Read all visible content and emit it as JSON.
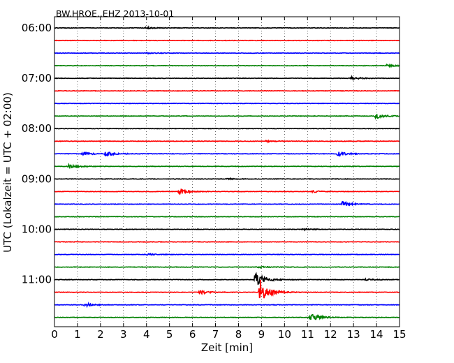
{
  "chart_data": {
    "type": "line",
    "title": "BW.HROE..EHZ 2013-10-01",
    "xlabel": "Zeit  [min]",
    "ylabel": "UTC (Lokalzeit = UTC + 02:00)",
    "xlim": [
      0,
      15
    ],
    "x_ticks": [
      "0",
      "1",
      "2",
      "3",
      "4",
      "5",
      "6",
      "7",
      "8",
      "9",
      "10",
      "11",
      "12",
      "13",
      "14",
      "15"
    ],
    "y_ticks": [
      "06:00",
      "07:00",
      "08:00",
      "09:00",
      "10:00",
      "11:00"
    ],
    "y_tick_trace_index": [
      0,
      4,
      8,
      12,
      16,
      20
    ],
    "grid": "vertical dotted",
    "trace_colors": [
      "#000000",
      "#ff0000",
      "#0000ff",
      "#008000"
    ],
    "traces": [
      {
        "start": "06:00",
        "events": [
          {
            "minute": 3.9,
            "amplitude": 0.25
          }
        ]
      },
      {
        "start": "06:15",
        "events": []
      },
      {
        "start": "06:30",
        "events": [
          {
            "minute": 4.0,
            "amplitude": 0.15
          }
        ]
      },
      {
        "start": "06:45",
        "events": [
          {
            "minute": 14.4,
            "amplitude": 0.25
          }
        ]
      },
      {
        "start": "07:00",
        "events": [
          {
            "minute": 12.9,
            "amplitude": 0.3
          }
        ]
      },
      {
        "start": "07:15",
        "events": []
      },
      {
        "start": "07:30",
        "events": []
      },
      {
        "start": "07:45",
        "events": [
          {
            "minute": 13.95,
            "amplitude": 0.55
          }
        ]
      },
      {
        "start": "08:00",
        "events": []
      },
      {
        "start": "08:15",
        "events": [
          {
            "minute": 9.2,
            "amplitude": 0.2
          }
        ]
      },
      {
        "start": "08:30",
        "events": [
          {
            "minute": 1.2,
            "amplitude": 0.4
          },
          {
            "minute": 2.2,
            "amplitude": 0.5
          },
          {
            "minute": 12.3,
            "amplitude": 0.5
          }
        ]
      },
      {
        "start": "08:45",
        "events": [
          {
            "minute": 0.6,
            "amplitude": 0.45
          }
        ]
      },
      {
        "start": "09:00",
        "events": [
          {
            "minute": 7.5,
            "amplitude": 0.15
          }
        ]
      },
      {
        "start": "09:15",
        "events": [
          {
            "minute": 5.4,
            "amplitude": 0.6
          },
          {
            "minute": 11.2,
            "amplitude": 0.2
          }
        ]
      },
      {
        "start": "09:30",
        "events": [
          {
            "minute": 12.5,
            "amplitude": 0.6
          }
        ]
      },
      {
        "start": "09:45",
        "events": []
      },
      {
        "start": "10:00",
        "events": [
          {
            "minute": 10.8,
            "amplitude": 0.15
          }
        ]
      },
      {
        "start": "10:15",
        "events": []
      },
      {
        "start": "10:30",
        "events": [
          {
            "minute": 4.0,
            "amplitude": 0.2
          }
        ]
      },
      {
        "start": "10:45",
        "events": [
          {
            "minute": 8.8,
            "amplitude": 0.25
          }
        ]
      },
      {
        "start": "11:00",
        "events": [
          {
            "minute": 8.7,
            "amplitude": 1.6
          },
          {
            "minute": 13.5,
            "amplitude": 0.2
          }
        ]
      },
      {
        "start": "11:15",
        "events": [
          {
            "minute": 6.3,
            "amplitude": 0.4
          },
          {
            "minute": 8.9,
            "amplitude": 3.0
          }
        ]
      },
      {
        "start": "11:30",
        "events": [
          {
            "minute": 1.3,
            "amplitude": 0.4
          }
        ]
      },
      {
        "start": "11:45",
        "events": [
          {
            "minute": 11.1,
            "amplitude": 0.9
          }
        ]
      }
    ]
  }
}
